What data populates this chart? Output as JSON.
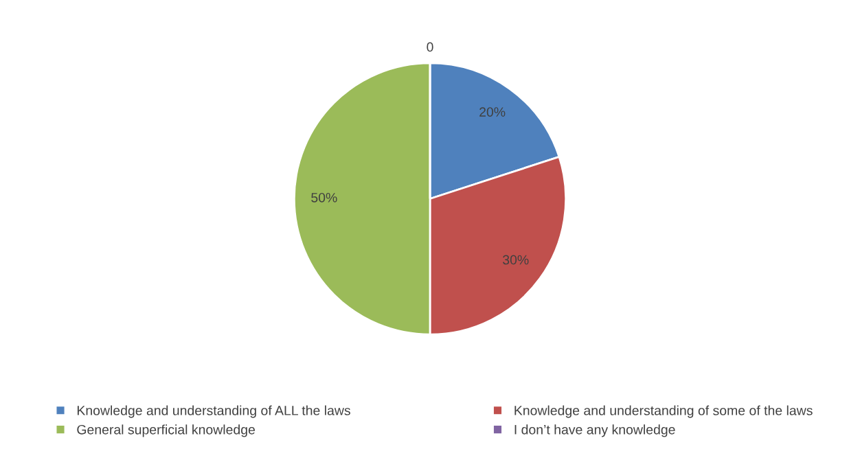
{
  "chart_data": {
    "type": "pie",
    "categories": [
      "Knowledge and understanding of ALL the laws",
      "Knowledge and understanding of some of the laws",
      "General superficial knowledge",
      "I don’t have any knowledge"
    ],
    "values": [
      20,
      30,
      50,
      0
    ],
    "colors": [
      "#4f81bd",
      "#c0504d",
      "#9bbb59",
      "#8064a2"
    ],
    "value_labels": [
      "20%",
      "30%",
      "50%",
      "0"
    ],
    "legend": "bottom"
  }
}
